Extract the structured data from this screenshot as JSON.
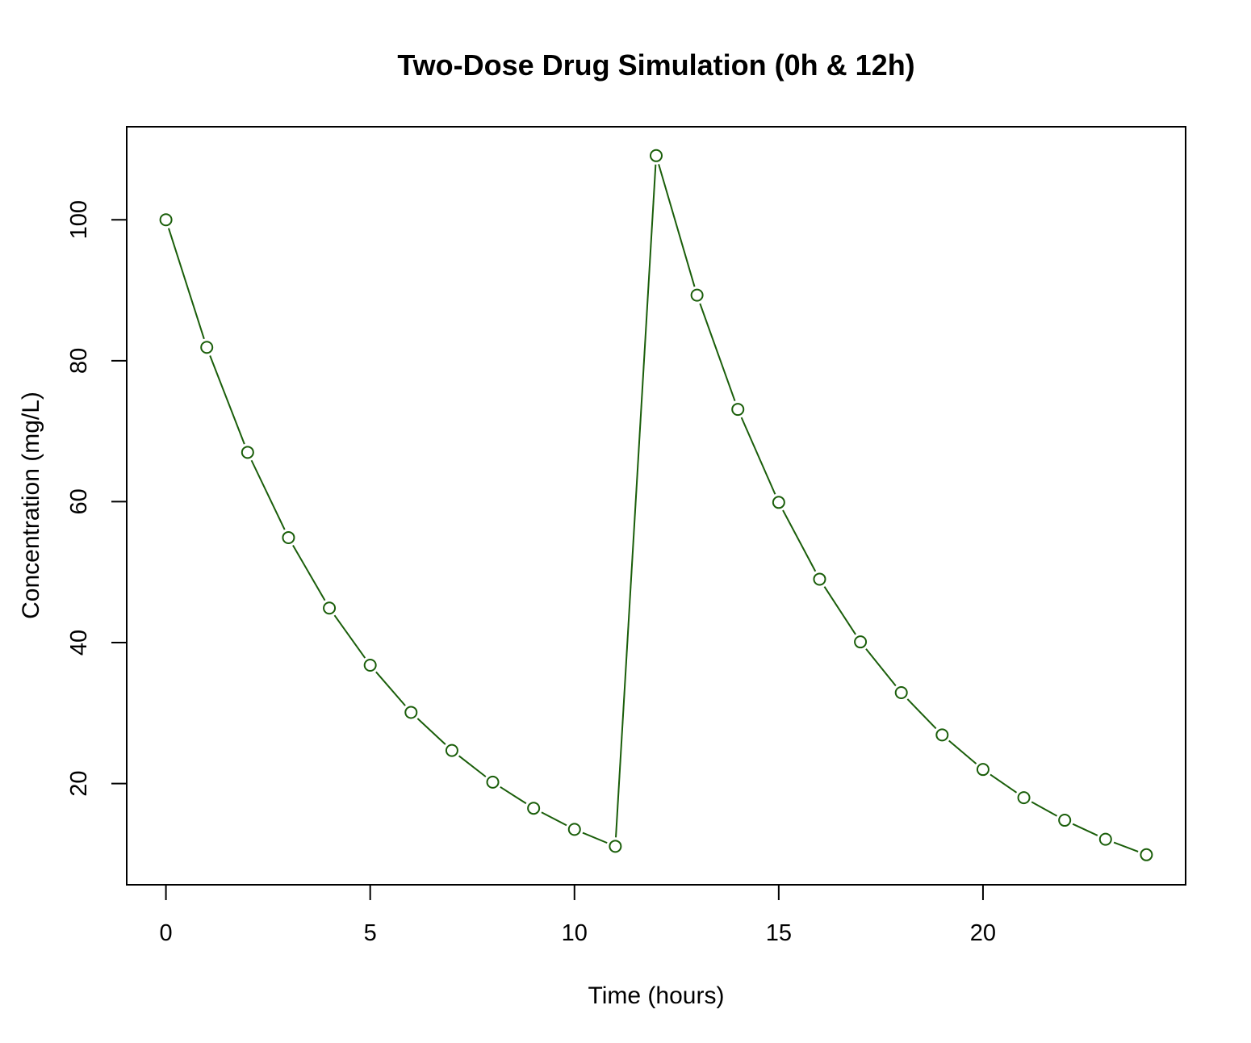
{
  "chart_data": {
    "type": "line",
    "title": "Two-Dose Drug Simulation (0h & 12h)",
    "xlabel": "Time (hours)",
    "ylabel": "Concentration (mg/L)",
    "xlim": [
      -0.96,
      24.96
    ],
    "ylim": [
      5.64,
      113.2
    ],
    "xticks": [
      0,
      5,
      10,
      15,
      20
    ],
    "yticks": [
      20,
      40,
      60,
      80,
      100
    ],
    "grid": false,
    "legend": "none",
    "line_style": "lines with open circle markers",
    "color": "#1a5e0a",
    "series": [
      {
        "x": [
          0,
          1,
          2,
          3,
          4,
          5,
          6,
          7,
          8,
          9,
          10,
          11,
          12,
          13,
          14,
          15,
          16,
          17,
          18,
          19,
          20,
          21,
          22,
          23,
          24
        ],
        "values": [
          100.0,
          81.9,
          67.0,
          54.9,
          44.9,
          36.8,
          30.1,
          24.7,
          20.2,
          16.5,
          13.5,
          11.1,
          109.1,
          89.3,
          73.1,
          59.9,
          49.0,
          40.1,
          32.9,
          26.9,
          22.0,
          18.0,
          14.8,
          12.1,
          9.9
        ]
      }
    ]
  }
}
